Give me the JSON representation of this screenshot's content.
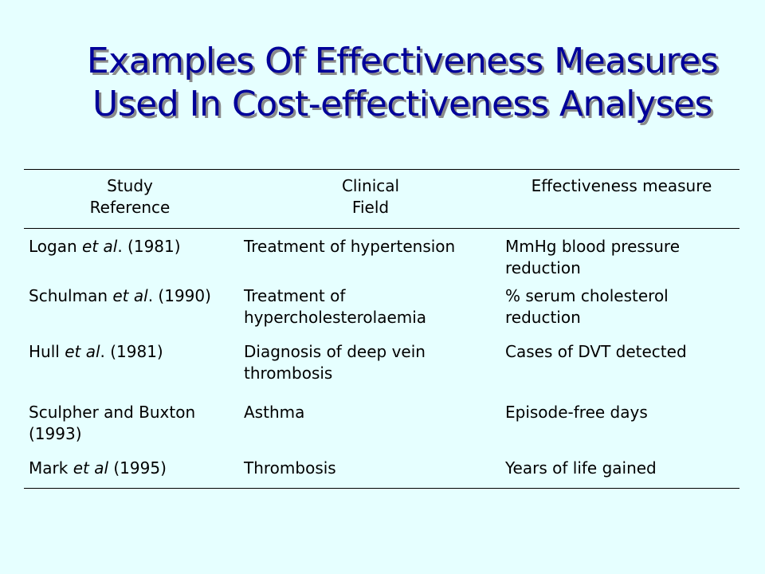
{
  "title": {
    "line1": "Examples Of Effectiveness Measures",
    "line2": "Used In Cost-effectiveness Analyses"
  },
  "table": {
    "headers": {
      "col1": [
        "Study",
        "Reference"
      ],
      "col2": [
        "Clinical",
        "Field"
      ],
      "col3": [
        "Effectiveness measure"
      ]
    },
    "rows": [
      {
        "ref_lines": [
          {
            "pre": "Logan ",
            "em": "et al",
            "post": ". (1981)"
          }
        ],
        "field_lines": [
          "Treatment of hypertension"
        ],
        "measure_lines": [
          "MmHg blood pressure",
          "reduction"
        ]
      },
      {
        "ref_lines": [
          {
            "pre": "Schulman ",
            "em": "et al",
            "post": ". (1990)"
          }
        ],
        "field_lines": [
          "Treatment of",
          "hypercholesterolaemia"
        ],
        "measure_lines": [
          "% serum cholesterol",
          "reduction"
        ]
      },
      {
        "ref_lines": [
          {
            "pre": "Hull ",
            "em": "et al",
            "post": ". (1981)"
          }
        ],
        "field_lines": [
          "Diagnosis of deep vein",
          "thrombosis"
        ],
        "measure_lines": [
          "Cases of DVT detected"
        ]
      },
      {
        "ref_lines": [
          {
            "pre": "Sculpher and Buxton",
            "em": "",
            "post": ""
          },
          {
            "pre": "(1993)",
            "em": "",
            "post": ""
          }
        ],
        "field_lines": [
          "Asthma"
        ],
        "measure_lines": [
          "Episode-free days"
        ]
      },
      {
        "ref_lines": [
          {
            "pre": "Mark ",
            "em": "et al",
            "post": " (1995)"
          }
        ],
        "field_lines": [
          "Thrombosis"
        ],
        "measure_lines": [
          "Years of life gained"
        ]
      }
    ]
  }
}
